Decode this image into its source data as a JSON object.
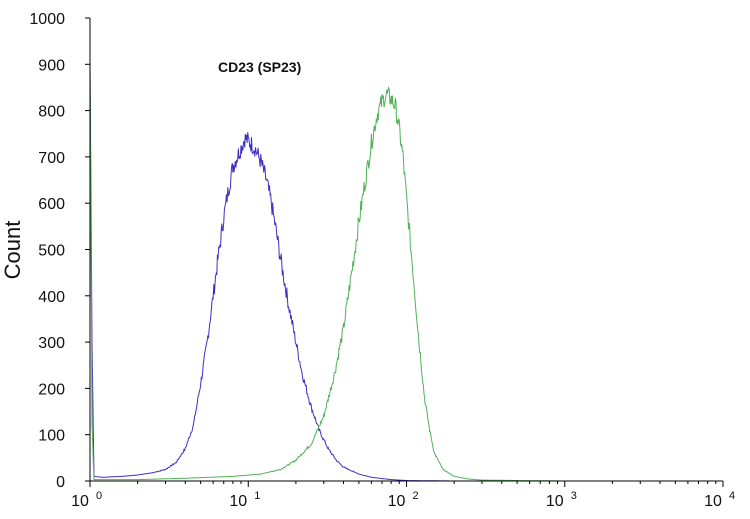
{
  "chart_data": {
    "type": "line",
    "title": "CD23 (SP23)",
    "xlabel": "",
    "ylabel": "Count",
    "x_scale": "log",
    "xlim": [
      1,
      10000
    ],
    "ylim": [
      0,
      1000
    ],
    "grid": false,
    "x_ticks": [
      {
        "base": "10",
        "exp": "0",
        "value": 1
      },
      {
        "base": "10",
        "exp": "1",
        "value": 10
      },
      {
        "base": "10",
        "exp": "2",
        "value": 100
      },
      {
        "base": "10",
        "exp": "3",
        "value": 1000
      },
      {
        "base": "10",
        "exp": "4",
        "value": 10000
      }
    ],
    "y_ticks": [
      "0",
      "100",
      "200",
      "300",
      "400",
      "500",
      "600",
      "700",
      "800",
      "900",
      "1000"
    ],
    "series": [
      {
        "color": "#3f2fc4",
        "points": [
          [
            1.0,
            900
          ],
          [
            1.03,
            300
          ],
          [
            1.06,
            10
          ],
          [
            1.2,
            8
          ],
          [
            1.6,
            10
          ],
          [
            2.0,
            13
          ],
          [
            2.5,
            18
          ],
          [
            3.0,
            25
          ],
          [
            3.5,
            40
          ],
          [
            4.0,
            70
          ],
          [
            4.5,
            120
          ],
          [
            5.0,
            210
          ],
          [
            5.5,
            300
          ],
          [
            6.0,
            400
          ],
          [
            6.5,
            490
          ],
          [
            7.0,
            570
          ],
          [
            7.5,
            630
          ],
          [
            8.0,
            680
          ],
          [
            8.5,
            700
          ],
          [
            9.0,
            720
          ],
          [
            9.5,
            740
          ],
          [
            10.0,
            735
          ],
          [
            11.0,
            720
          ],
          [
            12.0,
            690
          ],
          [
            13.0,
            650
          ],
          [
            14.0,
            600
          ],
          [
            15.0,
            540
          ],
          [
            16.0,
            480
          ],
          [
            18.0,
            380
          ],
          [
            20.0,
            300
          ],
          [
            22.0,
            230
          ],
          [
            25.0,
            160
          ],
          [
            28.0,
            110
          ],
          [
            32.0,
            70
          ],
          [
            36.0,
            45
          ],
          [
            40.0,
            30
          ],
          [
            50.0,
            15
          ],
          [
            60.0,
            8
          ],
          [
            80.0,
            3
          ],
          [
            100.0,
            1
          ],
          [
            200.0,
            0
          ],
          [
            10000.0,
            0
          ]
        ]
      },
      {
        "color": "#52b05a",
        "points": [
          [
            1.0,
            900
          ],
          [
            1.03,
            120
          ],
          [
            1.06,
            3
          ],
          [
            2.0,
            3
          ],
          [
            4.0,
            6
          ],
          [
            8.0,
            10
          ],
          [
            12.0,
            15
          ],
          [
            16.0,
            25
          ],
          [
            20.0,
            45
          ],
          [
            25.0,
            80
          ],
          [
            30.0,
            140
          ],
          [
            35.0,
            230
          ],
          [
            40.0,
            330
          ],
          [
            45.0,
            450
          ],
          [
            50.0,
            560
          ],
          [
            55.0,
            650
          ],
          [
            60.0,
            730
          ],
          [
            65.0,
            790
          ],
          [
            70.0,
            820
          ],
          [
            75.0,
            835
          ],
          [
            80.0,
            825
          ],
          [
            85.0,
            810
          ],
          [
            90.0,
            760
          ],
          [
            95.0,
            700
          ],
          [
            100.0,
            610
          ],
          [
            110.0,
            450
          ],
          [
            120.0,
            300
          ],
          [
            130.0,
            180
          ],
          [
            140.0,
            110
          ],
          [
            150.0,
            60
          ],
          [
            170.0,
            25
          ],
          [
            200.0,
            10
          ],
          [
            250.0,
            4
          ],
          [
            300.0,
            2
          ],
          [
            500.0,
            1
          ],
          [
            1000.0,
            0
          ],
          [
            10000.0,
            0
          ]
        ]
      }
    ]
  }
}
